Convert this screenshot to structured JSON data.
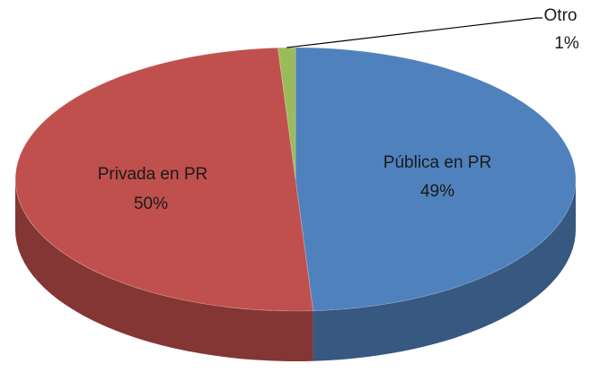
{
  "chart_data": {
    "type": "pie",
    "categories": [
      "Pública en PR",
      "Privada en PR",
      "Otro"
    ],
    "values": [
      49,
      50,
      1
    ],
    "value_labels": [
      "49%",
      "50%",
      "1%"
    ],
    "colors": [
      "#4f81bd",
      "#c0504d",
      "#9bbb59"
    ]
  }
}
